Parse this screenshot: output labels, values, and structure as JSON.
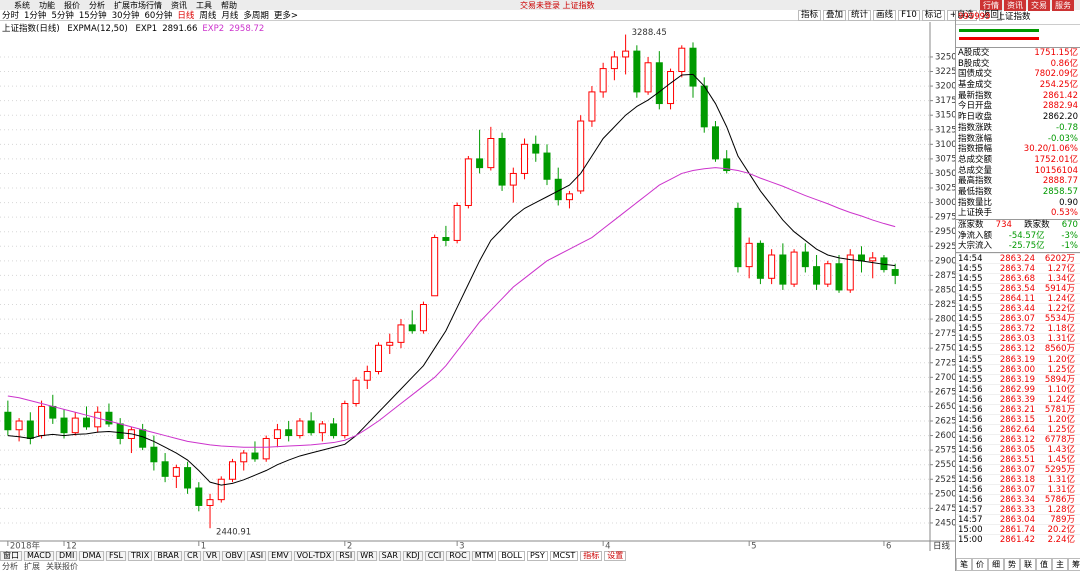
{
  "menu": [
    "系统",
    "功能",
    "报价",
    "分析",
    "扩展市场行情",
    "资讯",
    "工具",
    "帮助"
  ],
  "window_title": "交易未登录 上证指数",
  "top_right": [
    "行情",
    "资讯",
    "交易",
    "服务"
  ],
  "period_tabs": [
    "分时",
    "1分钟",
    "5分钟",
    "15分钟",
    "30分钟",
    "60分钟",
    "日线",
    "周线",
    "月线",
    "多周期",
    "更多>"
  ],
  "tools": [
    "指标",
    "叠加",
    "统计",
    "画线",
    "F10",
    "标记",
    "+自选",
    "返回"
  ],
  "chart_data": {
    "type": "candlestick",
    "title": "上证指数(日线)",
    "indicator": "EXPMA(12,50)",
    "period_label": "日线",
    "up_color": "#ff0000",
    "down_color": "#009a00",
    "grid": true,
    "ylim": [
      2419,
      3310
    ],
    "xlim": [
      -0.7,
      82.1
    ],
    "yticks": [
      2450,
      2475,
      2500,
      2525,
      2550,
      2575,
      2600,
      2625,
      2650,
      2675,
      2700,
      2725,
      2750,
      2775,
      2800,
      2825,
      2850,
      2875,
      2900,
      2925,
      2950,
      2975,
      3000,
      3025,
      3050,
      3075,
      3100,
      3125,
      3150,
      3175,
      3200,
      3225,
      3250
    ],
    "xticks": [
      {
        "value": 0,
        "label": "2018年"
      },
      {
        "value": 5,
        "label": "12"
      },
      {
        "value": 17,
        "label": "1"
      },
      {
        "value": 30,
        "label": "2"
      },
      {
        "value": 40,
        "label": "3"
      },
      {
        "value": 53,
        "label": "4"
      },
      {
        "value": 66,
        "label": "5"
      },
      {
        "value": 78,
        "label": "6"
      }
    ],
    "candles": [
      [
        2640,
        2660,
        2600,
        2610
      ],
      [
        2610,
        2630,
        2590,
        2625
      ],
      [
        2625,
        2640,
        2585,
        2595
      ],
      [
        2600,
        2660,
        2595,
        2650
      ],
      [
        2650,
        2670,
        2620,
        2630
      ],
      [
        2630,
        2645,
        2595,
        2605
      ],
      [
        2605,
        2640,
        2600,
        2630
      ],
      [
        2630,
        2650,
        2610,
        2615
      ],
      [
        2615,
        2650,
        2605,
        2640
      ],
      [
        2640,
        2655,
        2615,
        2620
      ],
      [
        2620,
        2630,
        2585,
        2595
      ],
      [
        2595,
        2615,
        2570,
        2610
      ],
      [
        2610,
        2620,
        2575,
        2580
      ],
      [
        2580,
        2600,
        2540,
        2555
      ],
      [
        2555,
        2570,
        2520,
        2530
      ],
      [
        2530,
        2550,
        2510,
        2545
      ],
      [
        2545,
        2555,
        2500,
        2510
      ],
      [
        2510,
        2520,
        2470,
        2480
      ],
      [
        2480,
        2500,
        2440.91,
        2490
      ],
      [
        2490,
        2530,
        2485,
        2525
      ],
      [
        2525,
        2560,
        2520,
        2555
      ],
      [
        2555,
        2575,
        2540,
        2570
      ],
      [
        2570,
        2590,
        2555,
        2560
      ],
      [
        2560,
        2600,
        2555,
        2595
      ],
      [
        2595,
        2620,
        2580,
        2610
      ],
      [
        2610,
        2625,
        2590,
        2600
      ],
      [
        2600,
        2630,
        2595,
        2625
      ],
      [
        2625,
        2640,
        2600,
        2605
      ],
      [
        2605,
        2625,
        2590,
        2620
      ],
      [
        2620,
        2630,
        2595,
        2600
      ],
      [
        2600,
        2660,
        2595,
        2655
      ],
      [
        2655,
        2700,
        2650,
        2695
      ],
      [
        2695,
        2720,
        2680,
        2710
      ],
      [
        2710,
        2760,
        2705,
        2755
      ],
      [
        2755,
        2775,
        2740,
        2760
      ],
      [
        2760,
        2800,
        2750,
        2790
      ],
      [
        2790,
        2815,
        2775,
        2780
      ],
      [
        2780,
        2830,
        2775,
        2825
      ],
      [
        2840,
        2945,
        2840,
        2940
      ],
      [
        2940,
        2960,
        2925,
        2935
      ],
      [
        2935,
        3000,
        2930,
        2995
      ],
      [
        2995,
        3080,
        2990,
        3075
      ],
      [
        3075,
        3125,
        3050,
        3060
      ],
      [
        3060,
        3130,
        3055,
        3110
      ],
      [
        3110,
        3120,
        3020,
        3030
      ],
      [
        3030,
        3060,
        3000,
        3050
      ],
      [
        3050,
        3110,
        3040,
        3100
      ],
      [
        3100,
        3115,
        3070,
        3085
      ],
      [
        3085,
        3100,
        3030,
        3040
      ],
      [
        3040,
        3060,
        2995,
        3005
      ],
      [
        3005,
        3020,
        2990,
        3015
      ],
      [
        3020,
        3150,
        3015,
        3140
      ],
      [
        3140,
        3200,
        3130,
        3190
      ],
      [
        3190,
        3240,
        3180,
        3230
      ],
      [
        3230,
        3260,
        3210,
        3250
      ],
      [
        3250,
        3288.45,
        3220,
        3260
      ],
      [
        3260,
        3270,
        3180,
        3190
      ],
      [
        3190,
        3250,
        3185,
        3240
      ],
      [
        3240,
        3260,
        3160,
        3170
      ],
      [
        3170,
        3230,
        3160,
        3225
      ],
      [
        3225,
        3270,
        3215,
        3265
      ],
      [
        3265,
        3275,
        3180,
        3200
      ],
      [
        3200,
        3215,
        3120,
        3130
      ],
      [
        3130,
        3140,
        3070,
        3075
      ],
      [
        3075,
        3090,
        3050,
        3055
      ],
      [
        2990,
        3000,
        2880,
        2890
      ],
      [
        2890,
        2940,
        2870,
        2930
      ],
      [
        2930,
        2935,
        2860,
        2870
      ],
      [
        2870,
        2920,
        2860,
        2910
      ],
      [
        2910,
        2930,
        2850,
        2860
      ],
      [
        2860,
        2920,
        2855,
        2915
      ],
      [
        2915,
        2930,
        2880,
        2890
      ],
      [
        2890,
        2910,
        2850,
        2860
      ],
      [
        2860,
        2900,
        2855,
        2895
      ],
      [
        2895,
        2910,
        2845,
        2850
      ],
      [
        2850,
        2920,
        2845,
        2910
      ],
      [
        2910,
        2925,
        2880,
        2900
      ],
      [
        2900,
        2915,
        2870,
        2905
      ],
      [
        2905,
        2910,
        2880,
        2885
      ],
      [
        2885,
        2895,
        2860,
        2875
      ]
    ],
    "high_label_index": 55,
    "low_label_index": 18,
    "series": [
      {
        "name": "EXP1",
        "color": "#000000",
        "values": [
          2600,
          2598,
          2595,
          2600,
          2602,
          2600,
          2602,
          2603,
          2606,
          2607,
          2605,
          2603,
          2598,
          2590,
          2580,
          2570,
          2558,
          2540,
          2520,
          2515,
          2518,
          2524,
          2532,
          2540,
          2550,
          2558,
          2565,
          2570,
          2575,
          2580,
          2585,
          2600,
          2620,
          2640,
          2660,
          2680,
          2700,
          2720,
          2750,
          2780,
          2820,
          2860,
          2900,
          2935,
          2955,
          2975,
          2990,
          3000,
          3010,
          3020,
          3030,
          3050,
          3080,
          3110,
          3130,
          3150,
          3165,
          3176,
          3190,
          3205,
          3219,
          3220,
          3200,
          3170,
          3130,
          3080,
          3050,
          3020,
          2995,
          2970,
          2950,
          2935,
          2920,
          2910,
          2905,
          2902,
          2900,
          2897,
          2894,
          2891.66
        ]
      },
      {
        "name": "EXP2",
        "color": "#cc33cc",
        "values": [
          2668,
          2665,
          2660,
          2655,
          2650,
          2645,
          2640,
          2635,
          2630,
          2625,
          2620,
          2615,
          2610,
          2605,
          2600,
          2595,
          2590,
          2587,
          2584,
          2582,
          2581,
          2580,
          2580,
          2580,
          2581,
          2582,
          2583,
          2584,
          2586,
          2588,
          2592,
          2600,
          2612,
          2625,
          2640,
          2655,
          2670,
          2685,
          2700,
          2720,
          2745,
          2770,
          2795,
          2815,
          2835,
          2855,
          2870,
          2885,
          2900,
          2910,
          2920,
          2930,
          2940,
          2955,
          2970,
          2985,
          3000,
          3015,
          3030,
          3040,
          3050,
          3055,
          3058,
          3060,
          3058,
          3055,
          3050,
          3042,
          3035,
          3028,
          3020,
          3012,
          3005,
          2998,
          2990,
          2983,
          2977,
          2970,
          2964,
          2958.72
        ]
      }
    ]
  },
  "indicator_tabs": [
    "窗口",
    "MACD",
    "DMI",
    "DMA",
    "FSL",
    "TRIX",
    "BRAR",
    "CR",
    "VR",
    "OBV",
    "ASI",
    "EMV",
    "VOL-TDX",
    "RSI",
    "WR",
    "SAR",
    "KDJ",
    "CCI",
    "ROC",
    "MTM",
    "BOLL",
    "PSY",
    "MCST",
    "指标",
    "设置"
  ],
  "footer_left": [
    "分析",
    "扩展",
    "关联报价"
  ],
  "quote": {
    "code": "999999",
    "name": "上证指数",
    "rows": [
      [
        "A股成交",
        "1751.15亿"
      ],
      [
        "B股成交",
        "0.86亿"
      ],
      [
        "国债成交",
        "7802.09亿"
      ],
      [
        "基金成交",
        "254.25亿"
      ],
      [
        "最新指数",
        "2861.42"
      ],
      [
        "今日开盘",
        "2882.94"
      ],
      [
        "昨日收盘",
        "2862.20"
      ],
      [
        "指数涨跌",
        "-0.78"
      ],
      [
        "指数涨幅",
        "-0.03%"
      ],
      [
        "指数振幅",
        "30.20/1.06%"
      ],
      [
        "总成交额",
        "1752.01亿"
      ],
      [
        "总成交量",
        "10156104"
      ],
      [
        "最高指数",
        "2888.77"
      ],
      [
        "最低指数",
        "2858.57"
      ],
      [
        "指数量比",
        "0.90"
      ],
      [
        "上证换手",
        "0.53%"
      ]
    ],
    "breadth": [
      "涨家数",
      "734",
      "跌家数",
      "670"
    ],
    "flows": [
      [
        "净流入额",
        "-54.57亿",
        "-3%"
      ],
      [
        "大宗流入",
        "-25.75亿",
        "-1%"
      ]
    ]
  },
  "trades": [
    [
      "14:54",
      "2863.24",
      "6202万"
    ],
    [
      "14:55",
      "2863.74",
      "1.27亿"
    ],
    [
      "14:55",
      "2863.68",
      "1.34亿"
    ],
    [
      "14:55",
      "2863.54",
      "5914万"
    ],
    [
      "14:55",
      "2864.11",
      "1.24亿"
    ],
    [
      "14:55",
      "2863.44",
      "1.22亿"
    ],
    [
      "14:55",
      "2863.07",
      "5534万"
    ],
    [
      "14:55",
      "2863.72",
      "1.18亿"
    ],
    [
      "14:55",
      "2863.03",
      "1.31亿"
    ],
    [
      "14:55",
      "2863.12",
      "8560万"
    ],
    [
      "14:55",
      "2863.19",
      "1.20亿"
    ],
    [
      "14:55",
      "2863.00",
      "1.25亿"
    ],
    [
      "14:55",
      "2863.19",
      "5894万"
    ],
    [
      "14:56",
      "2862.99",
      "1.10亿"
    ],
    [
      "14:56",
      "2863.39",
      "1.24亿"
    ],
    [
      "14:56",
      "2863.21",
      "5781万"
    ],
    [
      "14:56",
      "2863.15",
      "1.20亿"
    ],
    [
      "14:56",
      "2862.64",
      "1.25亿"
    ],
    [
      "14:56",
      "2863.12",
      "6778万"
    ],
    [
      "14:56",
      "2863.05",
      "1.43亿"
    ],
    [
      "14:56",
      "2863.51",
      "1.45亿"
    ],
    [
      "14:56",
      "2863.07",
      "5295万"
    ],
    [
      "14:56",
      "2863.18",
      "1.31亿"
    ],
    [
      "14:56",
      "2863.07",
      "1.31亿"
    ],
    [
      "14:56",
      "2863.34",
      "5786万"
    ],
    [
      "14:57",
      "2863.33",
      "1.28亿"
    ],
    [
      "14:57",
      "2863.04",
      "789万"
    ],
    [
      "15:00",
      "2861.74",
      "20.2亿"
    ],
    [
      "15:00",
      "2861.42",
      "2.24亿"
    ]
  ],
  "panel_tabs": [
    "笔",
    "价",
    "细",
    "势",
    "联",
    "值",
    "主",
    "筹"
  ]
}
